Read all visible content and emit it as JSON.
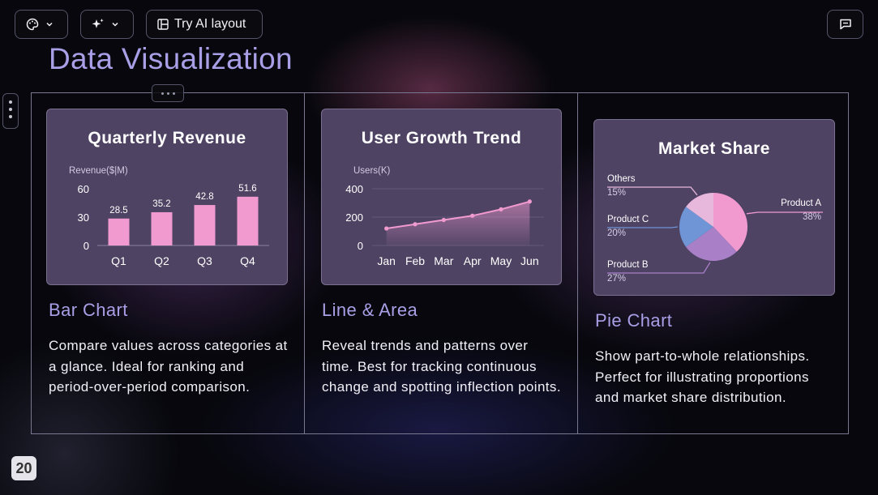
{
  "toolbar": {
    "try_ai_label": "Try AI layout",
    "theme_icon": "palette-icon",
    "ai_icon": "sparkles-icon",
    "layout_icon": "layout-icon",
    "comment_icon": "comment-icon"
  },
  "page_title": "Data Visualization",
  "slide_number": "20",
  "columns": [
    {
      "card_title": "Quarterly Revenue",
      "title": "Bar Chart",
      "description": "Compare values across categories at a glance. Ideal for ranking and period-over-period comparison."
    },
    {
      "card_title": "User Growth Trend",
      "title": "Line & Area",
      "description": "Reveal trends and patterns over time. Best for tracking continuous change and spotting inflection points."
    },
    {
      "card_title": "Market Share",
      "title": "Pie Chart",
      "description": "Show part-to-whole relationships. Perfect for illustrating proportions and market share distribution."
    }
  ],
  "colors": {
    "accent": "#a99fe6",
    "chart_pink": "#f19ad0",
    "card_bg": "#4e4363"
  },
  "chart_data": [
    {
      "type": "bar",
      "title": "Quarterly Revenue",
      "ylabel": "Revenue($|M)",
      "categories": [
        "Q1",
        "Q2",
        "Q3",
        "Q4"
      ],
      "values": [
        28.5,
        35.2,
        42.8,
        51.6
      ],
      "yticks": [
        0,
        30,
        60
      ],
      "ylim": [
        0,
        60
      ],
      "grid": false
    },
    {
      "type": "area",
      "title": "User Growth Trend",
      "ylabel": "Users(K)",
      "categories": [
        "Jan",
        "Feb",
        "Mar",
        "Apr",
        "May",
        "Jun"
      ],
      "values": [
        120,
        150,
        180,
        210,
        255,
        310
      ],
      "yticks": [
        0,
        200,
        400
      ],
      "ylim": [
        0,
        400
      ],
      "grid": true
    },
    {
      "type": "pie",
      "title": "Market Share",
      "slices": [
        {
          "name": "Product A",
          "value": 38,
          "label": "38%",
          "color": "#f19ad0"
        },
        {
          "name": "Product B",
          "value": 27,
          "label": "27%",
          "color": "#a97fc8"
        },
        {
          "name": "Product C",
          "value": 20,
          "label": "20%",
          "color": "#6f95d6"
        },
        {
          "name": "Others",
          "value": 15,
          "label": "15%",
          "color": "#e7b7dc"
        }
      ]
    }
  ]
}
